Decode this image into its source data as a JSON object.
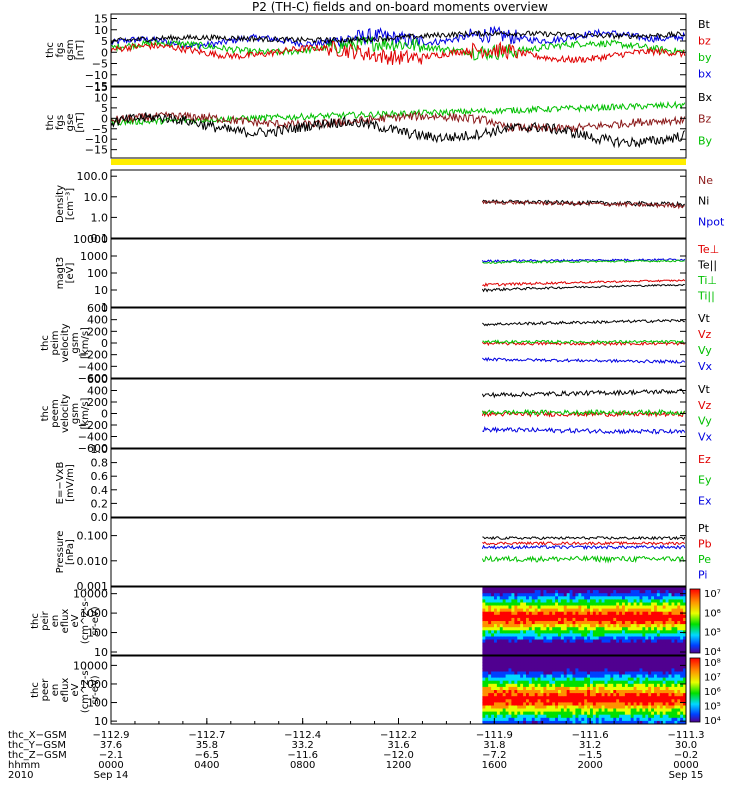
{
  "chart_data": {
    "type": "line",
    "title": "P2 (TH-C) fields and on-board moments overview",
    "panels": [
      {
        "id": "fgs_gsm",
        "ylabel": [
          "thc",
          "fgs",
          "gsm",
          "[nT]"
        ],
        "ylim": [
          -15,
          17
        ],
        "yticks": [
          {
            "label": "15",
            "value": 15
          },
          {
            "label": "10",
            "value": 10
          },
          {
            "label": "5",
            "value": 5
          },
          {
            "label": "0",
            "value": 0
          },
          {
            "label": "−5",
            "value": -5
          },
          {
            "label": "−10",
            "value": -10
          },
          {
            "label": "−15",
            "value": -15
          }
        ],
        "legend": [
          {
            "label": "Bt",
            "color": "#000000"
          },
          {
            "label": "bz",
            "color": "#e00000"
          },
          {
            "label": "by",
            "color": "#00c000"
          },
          {
            "label": "bx",
            "color": "#0000e0"
          }
        ]
      },
      {
        "id": "fgs_gse",
        "ylabel": [
          "thc",
          "fgs",
          "gse",
          "[nT]"
        ],
        "ylim": [
          -19,
          15
        ],
        "yticks": [
          {
            "label": "15",
            "value": 15
          },
          {
            "label": "10",
            "value": 10
          },
          {
            "label": "5",
            "value": 5
          },
          {
            "label": "0",
            "value": 0
          },
          {
            "label": "−5",
            "value": -5
          },
          {
            "label": "−10",
            "value": -10
          },
          {
            "label": "−15",
            "value": -15
          }
        ],
        "legend": [
          {
            "label": "Bx",
            "color": "#000000"
          },
          {
            "label": "Bz",
            "color": "#8b1a1a"
          },
          {
            "label": "By",
            "color": "#00c000"
          }
        ]
      },
      {
        "id": "density",
        "ylabel": [
          "Density",
          "[cm⁻³]"
        ],
        "yscale": "log",
        "ylim": [
          0.1,
          200
        ],
        "yticks": [
          {
            "label": "100.0",
            "value": 100
          },
          {
            "label": "10.0",
            "value": 10
          },
          {
            "label": "1.0",
            "value": 1
          },
          {
            "label": "0.1",
            "value": 0.1
          }
        ],
        "legend": [
          {
            "label": "Ne",
            "color": "#8b1a1a"
          },
          {
            "label": "Ni",
            "color": "#000000"
          },
          {
            "label": "Npot",
            "color": "#0000e0"
          }
        ]
      },
      {
        "id": "temperature",
        "ylabel": [
          "magt3",
          "[eV]"
        ],
        "yscale": "log",
        "ylim": [
          1,
          10000
        ],
        "yticks": [
          {
            "label": "10000",
            "value": 10000
          },
          {
            "label": "1000",
            "value": 1000
          },
          {
            "label": "100",
            "value": 100
          },
          {
            "label": "10",
            "value": 10
          },
          {
            "label": "1",
            "value": 1
          }
        ],
        "legend": [
          {
            "label": "Te⊥",
            "color": "#e00000"
          },
          {
            "label": "Te||",
            "color": "#000000"
          },
          {
            "label": "Ti⊥",
            "color": "#00c000"
          },
          {
            "label": "Ti||",
            "color": "#00c000"
          }
        ]
      },
      {
        "id": "peim_velocity",
        "ylabel": [
          "thc",
          "peim",
          "velocity",
          "gsm",
          "[km/s]"
        ],
        "ylim": [
          -600,
          600
        ],
        "yticks": [
          {
            "label": "600",
            "value": 600
          },
          {
            "label": "400",
            "value": 400
          },
          {
            "label": "200",
            "value": 200
          },
          {
            "label": "0",
            "value": 0
          },
          {
            "label": "−200",
            "value": -200
          },
          {
            "label": "−400",
            "value": -400
          },
          {
            "label": "−600",
            "value": -600
          }
        ],
        "legend": [
          {
            "label": "Vt",
            "color": "#000000"
          },
          {
            "label": "Vz",
            "color": "#e00000"
          },
          {
            "label": "Vy",
            "color": "#00c000"
          },
          {
            "label": "Vx",
            "color": "#0000e0"
          }
        ]
      },
      {
        "id": "peem_velocity",
        "ylabel": [
          "thc",
          "peem",
          "velocity",
          "gsm",
          "[km/s]"
        ],
        "ylim": [
          -600,
          600
        ],
        "yticks": [
          {
            "label": "600",
            "value": 600
          },
          {
            "label": "400",
            "value": 400
          },
          {
            "label": "200",
            "value": 200
          },
          {
            "label": "0",
            "value": 0
          },
          {
            "label": "−200",
            "value": -200
          },
          {
            "label": "−400",
            "value": -400
          },
          {
            "label": "−600",
            "value": -600
          }
        ],
        "legend": [
          {
            "label": "Vt",
            "color": "#000000"
          },
          {
            "label": "Vz",
            "color": "#e00000"
          },
          {
            "label": "Vy",
            "color": "#00c000"
          },
          {
            "label": "Vx",
            "color": "#0000e0"
          }
        ]
      },
      {
        "id": "efield",
        "ylabel": [
          "E=−VxB",
          "[mV/m]"
        ],
        "ylim": [
          0,
          1
        ],
        "yticks": [
          {
            "label": "1.0",
            "value": 1.0
          },
          {
            "label": "0.8",
            "value": 0.8
          },
          {
            "label": "0.6",
            "value": 0.6
          },
          {
            "label": "0.4",
            "value": 0.4
          },
          {
            "label": "0.2",
            "value": 0.2
          },
          {
            "label": "0.0",
            "value": 0.0
          }
        ],
        "legend": [
          {
            "label": "Ez",
            "color": "#e00000"
          },
          {
            "label": "Ey",
            "color": "#00c000"
          },
          {
            "label": "Ex",
            "color": "#0000e0"
          }
        ]
      },
      {
        "id": "pressure",
        "ylabel": [
          "Pressure",
          "[nPa]"
        ],
        "yscale": "log",
        "ylim": [
          0.001,
          0.5
        ],
        "yticks": [
          {
            "label": "0.100",
            "value": 0.1
          },
          {
            "label": "0.010",
            "value": 0.01
          },
          {
            "label": "0.001",
            "value": 0.001
          }
        ],
        "legend": [
          {
            "label": "Pt",
            "color": "#000000"
          },
          {
            "label": "Pb",
            "color": "#e00000"
          },
          {
            "label": "Pe",
            "color": "#00c000"
          },
          {
            "label": "Pi",
            "color": "#0000e0"
          }
        ]
      },
      {
        "id": "peir_spec",
        "ylabel": [
          "thc",
          "peir",
          "en",
          "eflux",
          "eV",
          "(cm^2-s-",
          "sr-eV)"
        ],
        "yscale": "log",
        "ylim": [
          7,
          22000
        ],
        "yticks": [
          {
            "label": "10000",
            "value": 10000
          },
          {
            "label": "1000",
            "value": 1000
          },
          {
            "label": "100",
            "value": 100
          },
          {
            "label": "10",
            "value": 10
          }
        ],
        "colorbar": [
          {
            "label": "10⁷",
            "exp": 7
          },
          {
            "label": "10⁶",
            "exp": 6
          },
          {
            "label": "10⁵",
            "exp": 5
          },
          {
            "label": "10⁴",
            "exp": 4
          }
        ]
      },
      {
        "id": "peer_spec",
        "ylabel": [
          "thc",
          "peer",
          "en",
          "eflux",
          "eV",
          "(cm^2-s-",
          "sr-eV)"
        ],
        "yscale": "log",
        "ylim": [
          7,
          32000
        ],
        "yticks": [
          {
            "label": "10000",
            "value": 10000
          },
          {
            "label": "1000",
            "value": 1000
          },
          {
            "label": "100",
            "value": 100
          },
          {
            "label": "10",
            "value": 10
          }
        ],
        "colorbar": [
          {
            "label": "10⁸",
            "exp": 8
          },
          {
            "label": "10⁷",
            "exp": 7
          },
          {
            "label": "10⁶",
            "exp": 6
          },
          {
            "label": "10⁵",
            "exp": 5
          },
          {
            "label": "10⁴",
            "exp": 4
          }
        ]
      }
    ],
    "xaxis": {
      "hours_range": [
        0,
        24
      ],
      "ticks_hours": [
        0,
        4,
        8,
        12,
        16,
        20,
        24
      ],
      "rows": [
        {
          "label": "thc_X−GSM",
          "values": [
            "−112.9",
            "−112.7",
            "−112.4",
            "−112.2",
            "−111.9",
            "−111.6",
            "−111.3"
          ]
        },
        {
          "label": "thc_Y−GSM",
          "values": [
            "37.6",
            "35.8",
            "33.2",
            "31.6",
            "31.8",
            "31.2",
            "30.0"
          ]
        },
        {
          "label": "thc_Z−GSM",
          "values": [
            "−2.1",
            "−6.5",
            "−11.6",
            "−12.0",
            "−7.2",
            "−1.5",
            "−0.2"
          ]
        },
        {
          "label": "hhmm",
          "values": [
            "0000",
            "0400",
            "0800",
            "1200",
            "1600",
            "2000",
            "0000"
          ]
        },
        {
          "label": "2010",
          "values": [
            "Sep 14",
            "",
            "",
            "",
            "",
            "",
            "Sep 15"
          ]
        }
      ]
    }
  }
}
